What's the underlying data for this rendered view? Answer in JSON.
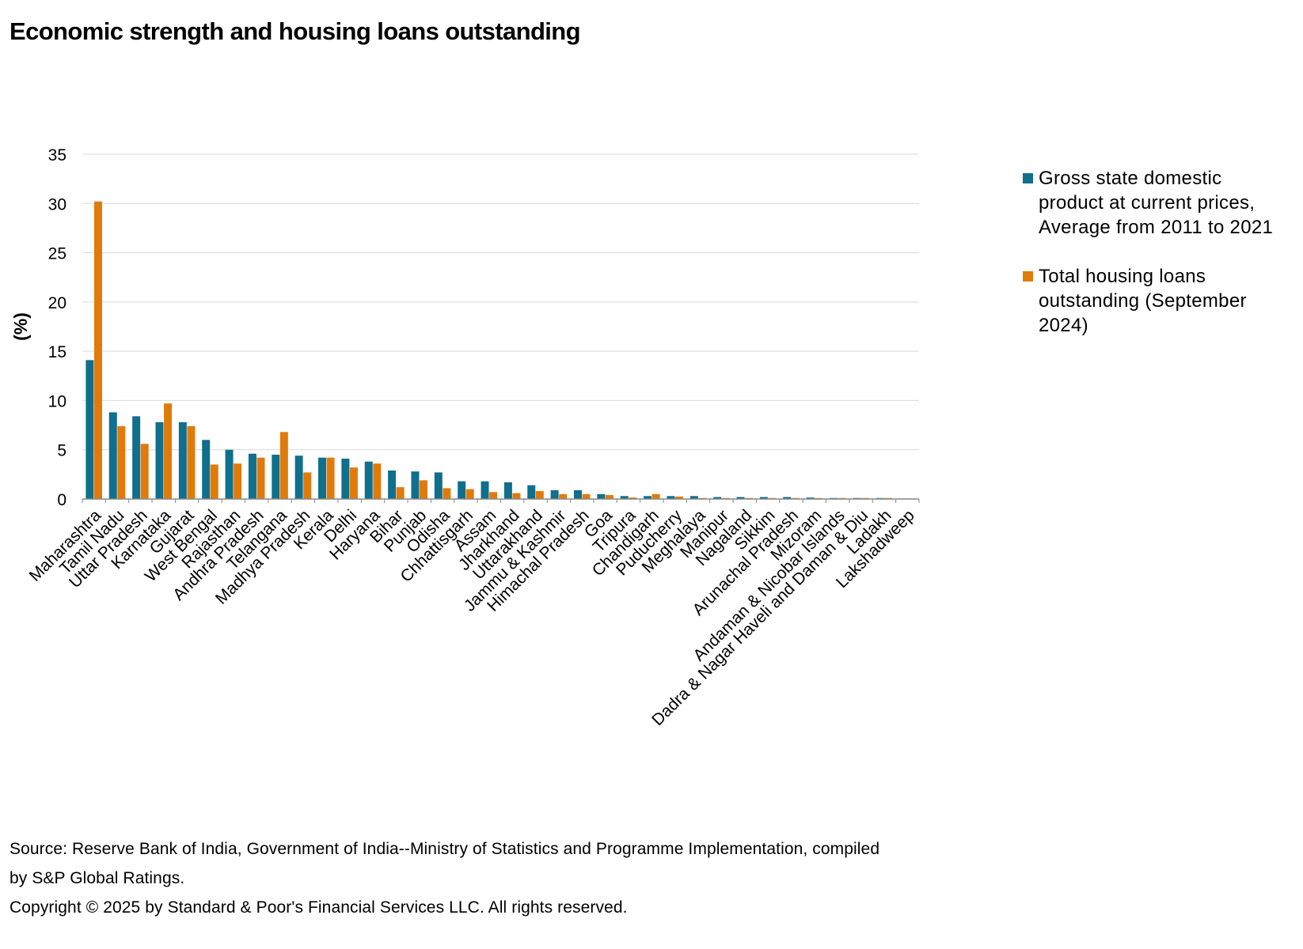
{
  "title": "Economic strength and housing loans outstanding",
  "source_lines": [
    "Source: Reserve Bank of India, Government of India--Ministry of Statistics and Programme Implementation, compiled",
    "by S&P Global Ratings.",
    "Copyright © 2025 by Standard & Poor's Financial Services LLC. All rights reserved."
  ],
  "colors": {
    "gsdp": "#0f6f8c",
    "housing": "#e07b0b",
    "grid": "#d9d9d9",
    "axis": "#888888"
  },
  "chart_data": {
    "type": "bar",
    "title": "Economic strength and housing loans outstanding",
    "xlabel": "",
    "ylabel": "(%)",
    "ylim": [
      0,
      35
    ],
    "yticks": [
      0,
      5,
      10,
      15,
      20,
      25,
      30,
      35
    ],
    "grid": true,
    "legend_position": "right",
    "categories": [
      "Maharashtra",
      "Tamil Nadu",
      "Uttar Pradesh",
      "Karnataka",
      "Gujarat",
      "West Bengal",
      "Rajasthan",
      "Andhra Pradesh",
      "Telangana",
      "Madhya Pradesh",
      "Kerala",
      "Delhi",
      "Haryana",
      "Bihar",
      "Punjab",
      "Odisha",
      "Chhattisgarh",
      "Assam",
      "Jharkhand",
      "Uttarakhand",
      "Jammu & Kashmir",
      "Himachal Pradesh",
      "Goa",
      "Tripura",
      "Chandigarh",
      "Puducherry",
      "Meghalaya",
      "Manipur",
      "Nagaland",
      "Sikkim",
      "Arunachal Pradesh",
      "Mizoram",
      "Andaman & Nicobar Islands",
      "Dadra & Nagar Haveli and Daman & Diu",
      "Ladakh",
      "Lakshadweep"
    ],
    "series": [
      {
        "name": "Gross state domestic product at current prices, Average from 2011 to 2021",
        "values": [
          14.1,
          8.8,
          8.4,
          7.8,
          7.8,
          6.0,
          5.0,
          4.6,
          4.5,
          4.4,
          4.2,
          4.1,
          3.8,
          2.9,
          2.8,
          2.7,
          1.8,
          1.8,
          1.7,
          1.4,
          0.9,
          0.9,
          0.5,
          0.3,
          0.3,
          0.3,
          0.3,
          0.2,
          0.2,
          0.2,
          0.2,
          0.15,
          0.1,
          0.1,
          0.1,
          0.05
        ]
      },
      {
        "name": "Total housing loans outstanding (September 2024)",
        "values": [
          30.2,
          7.4,
          5.6,
          9.7,
          7.4,
          3.5,
          3.6,
          4.2,
          6.8,
          2.7,
          4.2,
          3.2,
          3.6,
          1.2,
          1.9,
          1.1,
          1.0,
          0.7,
          0.6,
          0.8,
          0.5,
          0.5,
          0.4,
          0.15,
          0.5,
          0.25,
          0.1,
          0.1,
          0.1,
          0.1,
          0.1,
          0.1,
          0.1,
          0.1,
          0.1,
          0.05
        ]
      }
    ]
  }
}
